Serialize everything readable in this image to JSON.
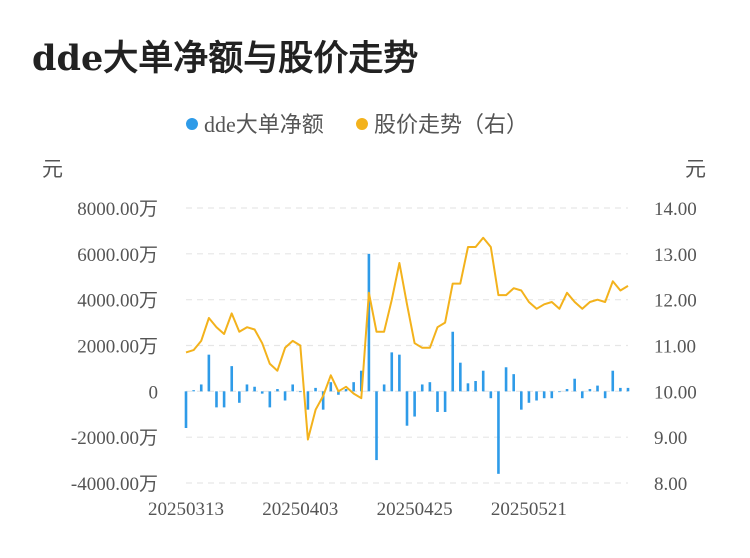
{
  "title": "dde大单净额与股价走势",
  "colors": {
    "bars": "#2e9be8",
    "line": "#f3b21c",
    "grid": "#e6e6e6",
    "text": "#555555"
  },
  "chart_data": {
    "type": "bar+line",
    "title": "dde大单净额与股价走势",
    "legend": {
      "position": "top",
      "entries": [
        {
          "name": "dde大单净额",
          "marker": "dot",
          "color": "#2e9be8"
        },
        {
          "name": "股价走势（右）",
          "marker": "dot",
          "color": "#f3b21c"
        }
      ]
    },
    "left_axis": {
      "unit_label": "元",
      "ylim": [
        -4000,
        8000
      ],
      "ticks": [
        8000,
        6000,
        4000,
        2000,
        0,
        -2000,
        -4000
      ],
      "tick_labels": [
        "8000.00万",
        "6000.00万",
        "4000.00万",
        "2000.00万",
        "0",
        "-2000.00万",
        "-4000.00万"
      ]
    },
    "right_axis": {
      "unit_label": "元",
      "ylim": [
        8,
        14
      ],
      "ticks": [
        14,
        13,
        12,
        11,
        10,
        9,
        8
      ],
      "tick_labels": [
        "14.00",
        "13.00",
        "12.00",
        "11.00",
        "10.00",
        "9.00",
        "8.00"
      ]
    },
    "x_tick_labels": [
      {
        "index": 0,
        "label": "20250313"
      },
      {
        "index": 15,
        "label": "20250403"
      },
      {
        "index": 30,
        "label": "20250425"
      },
      {
        "index": 45,
        "label": "20250521"
      }
    ],
    "grid": "horizontal-dashed",
    "series": [
      {
        "name": "dde大单净额",
        "type": "bar",
        "axis": "left",
        "values": [
          -1600,
          50,
          300,
          1600,
          -700,
          -700,
          1100,
          -500,
          300,
          200,
          -100,
          -700,
          100,
          -400,
          300,
          0,
          -800,
          150,
          -800,
          400,
          -150,
          100,
          400,
          900,
          6000,
          -3000,
          300,
          1700,
          1600,
          -1500,
          -1100,
          300,
          400,
          -900,
          -900,
          2600,
          1250,
          350,
          450,
          900,
          -300,
          -3600,
          1050,
          750,
          -800,
          -500,
          -400,
          -300,
          -300,
          0,
          100,
          550,
          -300,
          100,
          250,
          -300,
          900,
          150,
          150
        ]
      },
      {
        "name": "股价走势（右）",
        "type": "line",
        "axis": "right",
        "values": [
          10.85,
          10.9,
          11.1,
          11.6,
          11.4,
          11.25,
          11.7,
          11.3,
          11.4,
          11.35,
          11.05,
          10.6,
          10.45,
          10.95,
          11.1,
          11.0,
          8.95,
          9.6,
          9.9,
          10.35,
          10.0,
          10.1,
          9.95,
          9.85,
          12.15,
          11.3,
          11.3,
          12.0,
          12.8,
          11.9,
          11.05,
          10.95,
          10.95,
          11.4,
          11.5,
          12.35,
          12.35,
          13.15,
          13.15,
          13.35,
          13.15,
          12.1,
          12.1,
          12.25,
          12.2,
          11.95,
          11.8,
          11.9,
          11.95,
          11.8,
          12.15,
          11.95,
          11.8,
          11.95,
          12.0,
          11.95,
          12.4,
          12.2,
          12.3
        ]
      }
    ]
  }
}
